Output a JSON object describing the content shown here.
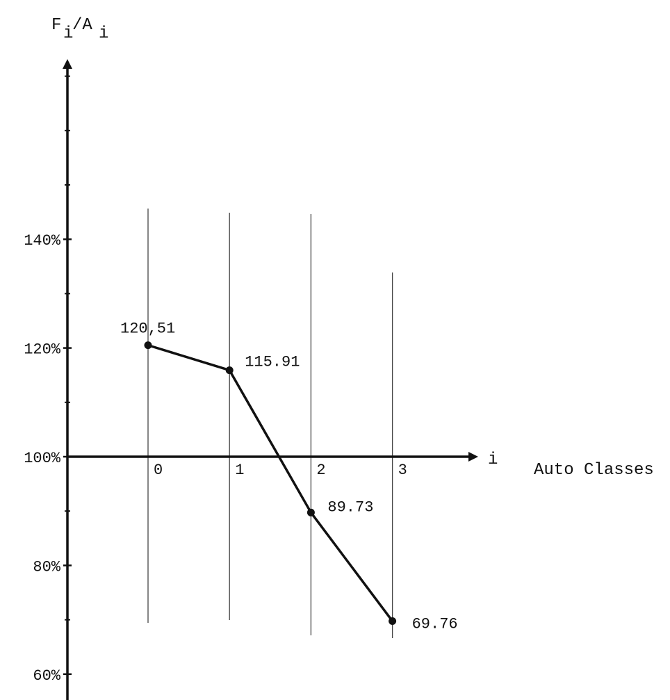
{
  "chart_data": {
    "type": "line",
    "ylabel_main": "F",
    "ylabel_sub1": "i",
    "ylabel_mid": "/A",
    "ylabel_sub2": "i",
    "xlabel_symbol": "i",
    "xlabel_text": "Auto Classes",
    "y_tick_labels": [
      "60%",
      "80%",
      "100%",
      "120%",
      "140%"
    ],
    "y_ticks": [
      60,
      80,
      100,
      120,
      140
    ],
    "y_minor_ticks": [
      70,
      90,
      110,
      130,
      150,
      160,
      170
    ],
    "ylim": [
      58,
      175
    ],
    "x_tick_labels": [
      "0",
      "1",
      "2",
      "3"
    ],
    "x": [
      0,
      1,
      2,
      3
    ],
    "xlim": [
      -1,
      4.3
    ],
    "axis_crossing_y": 100,
    "series": [
      {
        "values": [
          120.51,
          115.91,
          89.73,
          69.76
        ],
        "labels": [
          "120,51",
          "115.91",
          "89.73",
          "69.76"
        ]
      }
    ],
    "grid": "vertical lines at each class",
    "legend": "none"
  }
}
